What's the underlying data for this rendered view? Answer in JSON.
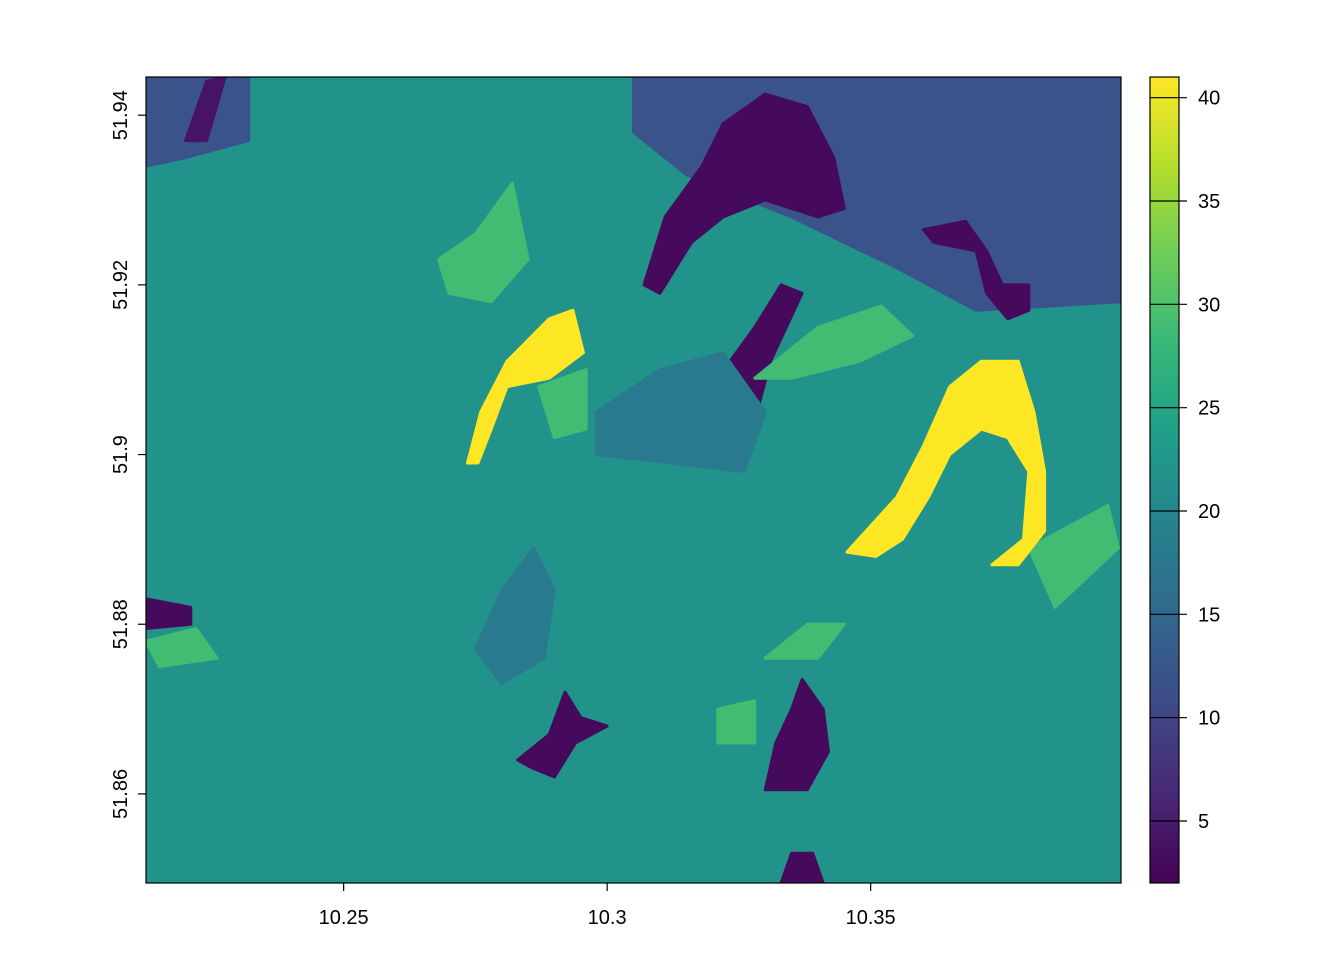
{
  "chart_data": {
    "type": "heatmap",
    "title": "",
    "xlabel": "",
    "ylabel": "",
    "xlim": [
      10.2125,
      10.3975
    ],
    "ylim": [
      51.8495,
      51.9445
    ],
    "x_ticks": [
      {
        "value": 10.25,
        "label": "10.25"
      },
      {
        "value": 10.3,
        "label": "10.3"
      },
      {
        "value": 10.35,
        "label": "10.35"
      }
    ],
    "y_ticks": [
      {
        "value": 51.86,
        "label": "51.86"
      },
      {
        "value": 51.88,
        "label": "51.88"
      },
      {
        "value": 51.9,
        "label": "51.9"
      },
      {
        "value": 51.92,
        "label": "51.92"
      },
      {
        "value": 51.94,
        "label": "51.94"
      }
    ],
    "colorbar": {
      "min": 2,
      "max": 41,
      "ticks": [
        {
          "value": 5,
          "label": "5"
        },
        {
          "value": 10,
          "label": "10"
        },
        {
          "value": 15,
          "label": "15"
        },
        {
          "value": 20,
          "label": "20"
        },
        {
          "value": 25,
          "label": "25"
        },
        {
          "value": 30,
          "label": "30"
        },
        {
          "value": 35,
          "label": "35"
        },
        {
          "value": 40,
          "label": "40"
        }
      ],
      "palette": [
        "#440154",
        "#482878",
        "#3E4A89",
        "#31688E",
        "#26828E",
        "#1F9E89",
        "#35B779",
        "#6DCD59",
        "#B4DE2C",
        "#FDE725"
      ]
    },
    "base_value": 22,
    "regions": [
      {
        "name": "upper-right dark-blue zone",
        "value": 12,
        "poly": [
          [
            10.305,
            51.9445
          ],
          [
            10.3975,
            51.9445
          ],
          [
            10.3975,
            51.918
          ],
          [
            10.37,
            51.917
          ],
          [
            10.355,
            51.922
          ],
          [
            10.335,
            51.928
          ],
          [
            10.315,
            51.933
          ],
          [
            10.305,
            51.938
          ]
        ]
      },
      {
        "name": "upper-left dark-blue patch",
        "value": 12,
        "poly": [
          [
            10.2125,
            51.9445
          ],
          [
            10.232,
            51.9445
          ],
          [
            10.232,
            51.937
          ],
          [
            10.22,
            51.935
          ],
          [
            10.2125,
            51.934
          ]
        ]
      },
      {
        "name": "top dark-purple blob",
        "value": 3,
        "poly": [
          [
            10.322,
            51.939
          ],
          [
            10.33,
            51.9425
          ],
          [
            10.338,
            51.941
          ],
          [
            10.343,
            51.935
          ],
          [
            10.345,
            51.929
          ],
          [
            10.34,
            51.928
          ],
          [
            10.33,
            51.93
          ],
          [
            10.322,
            51.928
          ],
          [
            10.316,
            51.925
          ],
          [
            10.31,
            51.919
          ],
          [
            10.307,
            51.92
          ],
          [
            10.311,
            51.928
          ],
          [
            10.318,
            51.934
          ]
        ]
      },
      {
        "name": "top-right dark-purple blob",
        "value": 3,
        "poly": [
          [
            10.36,
            51.9265
          ],
          [
            10.368,
            51.9275
          ],
          [
            10.372,
            51.924
          ],
          [
            10.375,
            51.92
          ],
          [
            10.38,
            51.92
          ],
          [
            10.38,
            51.917
          ],
          [
            10.376,
            51.916
          ],
          [
            10.372,
            51.919
          ],
          [
            10.37,
            51.924
          ],
          [
            10.362,
            51.925
          ]
        ]
      },
      {
        "name": "central dark-purple streak",
        "value": 3,
        "poly": [
          [
            10.321,
            51.909
          ],
          [
            10.328,
            51.915
          ],
          [
            10.333,
            51.92
          ],
          [
            10.337,
            51.919
          ],
          [
            10.331,
            51.911
          ],
          [
            10.328,
            51.904
          ],
          [
            10.326,
            51.899
          ],
          [
            10.322,
            51.902
          ],
          [
            10.319,
            51.906
          ]
        ]
      },
      {
        "name": "lower dark-purple star",
        "value": 3,
        "poly": [
          [
            10.283,
            51.864
          ],
          [
            10.289,
            51.867
          ],
          [
            10.292,
            51.872
          ],
          [
            10.295,
            51.869
          ],
          [
            10.3,
            51.868
          ],
          [
            10.294,
            51.866
          ],
          [
            10.29,
            51.862
          ],
          [
            10.286,
            51.863
          ]
        ]
      },
      {
        "name": "bottom dark-purple blob",
        "value": 3,
        "poly": [
          [
            10.337,
            51.8735
          ],
          [
            10.341,
            51.87
          ],
          [
            10.342,
            51.865
          ],
          [
            10.338,
            51.8605
          ],
          [
            10.33,
            51.8605
          ],
          [
            10.332,
            51.866
          ],
          [
            10.335,
            51.87
          ]
        ]
      },
      {
        "name": "bottom edge dark-purple patch",
        "value": 3,
        "poly": [
          [
            10.333,
            51.8495
          ],
          [
            10.341,
            51.8495
          ],
          [
            10.339,
            51.853
          ],
          [
            10.335,
            51.853
          ]
        ]
      },
      {
        "name": "left edge dark-purple patch",
        "value": 3,
        "poly": [
          [
            10.2125,
            51.883
          ],
          [
            10.221,
            51.882
          ],
          [
            10.221,
            51.88
          ],
          [
            10.2125,
            51.8795
          ]
        ]
      },
      {
        "name": "upper-left dark-purple streak",
        "value": 4,
        "poly": [
          [
            10.22,
            51.937
          ],
          [
            10.224,
            51.944
          ],
          [
            10.2275,
            51.9445
          ],
          [
            10.224,
            51.937
          ]
        ]
      },
      {
        "name": "central blue-teal patch",
        "value": 18,
        "poly": [
          [
            10.298,
            51.905
          ],
          [
            10.31,
            51.91
          ],
          [
            10.322,
            51.912
          ],
          [
            10.33,
            51.905
          ],
          [
            10.326,
            51.898
          ],
          [
            10.312,
            51.899
          ],
          [
            10.298,
            51.9
          ]
        ]
      },
      {
        "name": "lower blue-teal patch",
        "value": 18,
        "poly": [
          [
            10.275,
            51.877
          ],
          [
            10.28,
            51.884
          ],
          [
            10.286,
            51.889
          ],
          [
            10.29,
            51.884
          ],
          [
            10.288,
            51.876
          ],
          [
            10.28,
            51.873
          ]
        ]
      },
      {
        "name": "green zone near left yellow",
        "value": 29,
        "poly": [
          [
            10.268,
            51.923
          ],
          [
            10.275,
            51.926
          ],
          [
            10.282,
            51.932
          ],
          [
            10.285,
            51.923
          ],
          [
            10.278,
            51.918
          ],
          [
            10.27,
            51.919
          ]
        ]
      },
      {
        "name": "green zone below left yellow",
        "value": 29,
        "poly": [
          [
            10.287,
            51.908
          ],
          [
            10.296,
            51.91
          ],
          [
            10.296,
            51.903
          ],
          [
            10.29,
            51.902
          ]
        ]
      },
      {
        "name": "green zone central-right",
        "value": 29,
        "poly": [
          [
            10.34,
            51.915
          ],
          [
            10.352,
            51.9175
          ],
          [
            10.358,
            51.914
          ],
          [
            10.348,
            51.911
          ],
          [
            10.335,
            51.909
          ],
          [
            10.328,
            51.909
          ]
        ]
      },
      {
        "name": "green zone lower-center",
        "value": 29,
        "poly": [
          [
            10.33,
            51.876
          ],
          [
            10.338,
            51.88
          ],
          [
            10.345,
            51.88
          ],
          [
            10.34,
            51.876
          ]
        ]
      },
      {
        "name": "green zone bottom blob",
        "value": 29,
        "poly": [
          [
            10.321,
            51.87
          ],
          [
            10.328,
            51.871
          ],
          [
            10.328,
            51.866
          ],
          [
            10.321,
            51.866
          ]
        ]
      },
      {
        "name": "green zone right edge",
        "value": 29,
        "poly": [
          [
            10.38,
            51.889
          ],
          [
            10.395,
            51.894
          ],
          [
            10.397,
            51.889
          ],
          [
            10.385,
            51.882
          ]
        ]
      },
      {
        "name": "green zone left bottom",
        "value": 29,
        "poly": [
          [
            10.2125,
            51.878
          ],
          [
            10.222,
            51.8795
          ],
          [
            10.226,
            51.876
          ],
          [
            10.215,
            51.875
          ]
        ]
      },
      {
        "name": "left yellow arc",
        "value": 41,
        "poly": [
          [
            10.2735,
            51.899
          ],
          [
            10.276,
            51.905
          ],
          [
            10.281,
            51.911
          ],
          [
            10.289,
            51.916
          ],
          [
            10.2935,
            51.917
          ],
          [
            10.2955,
            51.912
          ],
          [
            10.289,
            51.909
          ],
          [
            10.281,
            51.908
          ],
          [
            10.278,
            51.903
          ],
          [
            10.2755,
            51.899
          ]
        ]
      },
      {
        "name": "right yellow arc",
        "value": 41,
        "poly": [
          [
            10.3455,
            51.8885
          ],
          [
            10.355,
            51.895
          ],
          [
            10.36,
            51.901
          ],
          [
            10.365,
            51.908
          ],
          [
            10.371,
            51.911
          ],
          [
            10.378,
            51.911
          ],
          [
            10.381,
            51.905
          ],
          [
            10.383,
            51.898
          ],
          [
            10.383,
            51.891
          ],
          [
            10.378,
            51.887
          ],
          [
            10.373,
            51.887
          ],
          [
            10.379,
            51.89
          ],
          [
            10.38,
            51.898
          ],
          [
            10.376,
            51.902
          ],
          [
            10.371,
            51.903
          ],
          [
            10.365,
            51.9
          ],
          [
            10.361,
            51.895
          ],
          [
            10.356,
            51.89
          ],
          [
            10.351,
            51.888
          ]
        ]
      }
    ]
  }
}
